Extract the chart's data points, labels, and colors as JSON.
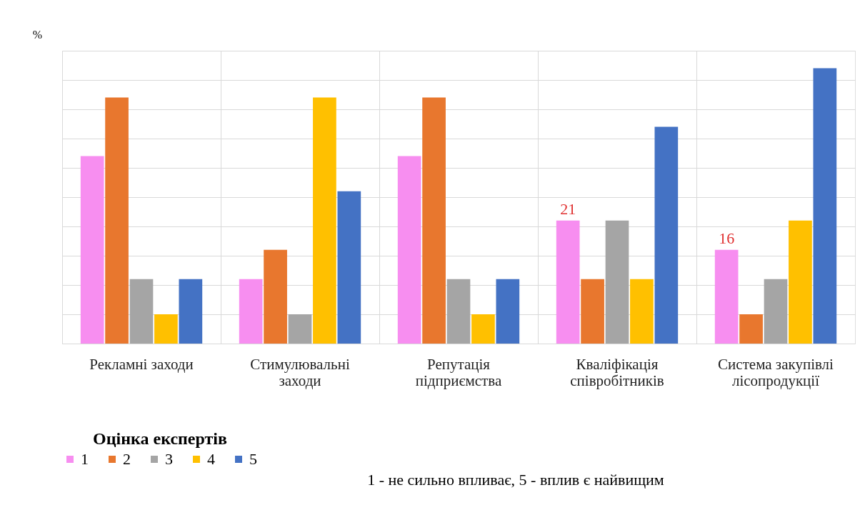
{
  "chart_data": {
    "type": "bar",
    "ylabel": "%",
    "legend_title": "Оцінка експертів",
    "categories": [
      "Рекламні заходи",
      "Стимулювальні заходи",
      "Репутація підприємства",
      "Кваліфікація співробітників",
      "Система закупівлі лісопродукції"
    ],
    "series": [
      {
        "name": "1",
        "color": "#f78ef0",
        "values": [
          32,
          11,
          32,
          21,
          16
        ],
        "value_labels": [
          null,
          null,
          null,
          "21",
          "16"
        ]
      },
      {
        "name": "2",
        "color": "#e8772e",
        "values": [
          42,
          16,
          42,
          11,
          5
        ]
      },
      {
        "name": "3",
        "color": "#a5a5a5",
        "values": [
          11,
          5,
          11,
          21,
          11
        ]
      },
      {
        "name": "4",
        "color": "#ffc000",
        "values": [
          5,
          42,
          5,
          11,
          21
        ]
      },
      {
        "name": "5",
        "color": "#4472c4",
        "values": [
          11,
          26,
          11,
          37,
          47
        ]
      }
    ],
    "ylim": [
      0,
      50
    ],
    "yticks": [
      {
        "value": 0,
        "label": null
      },
      {
        "value": 5,
        "label": null
      },
      {
        "value": 10,
        "label": null
      },
      {
        "value": 15,
        "label": null
      },
      {
        "value": 20,
        "label": null
      },
      {
        "value": 25,
        "label": null
      },
      {
        "value": 30,
        "label": null
      },
      {
        "value": 35,
        "label": null
      },
      {
        "value": 40,
        "label": null
      },
      {
        "value": 45,
        "label": null
      },
      {
        "value": 50,
        "label": null
      }
    ],
    "grid": true,
    "legend": "bottom",
    "annotations": [
      "1 - не сильно впливає, 5 - вплив є найвищим"
    ]
  }
}
